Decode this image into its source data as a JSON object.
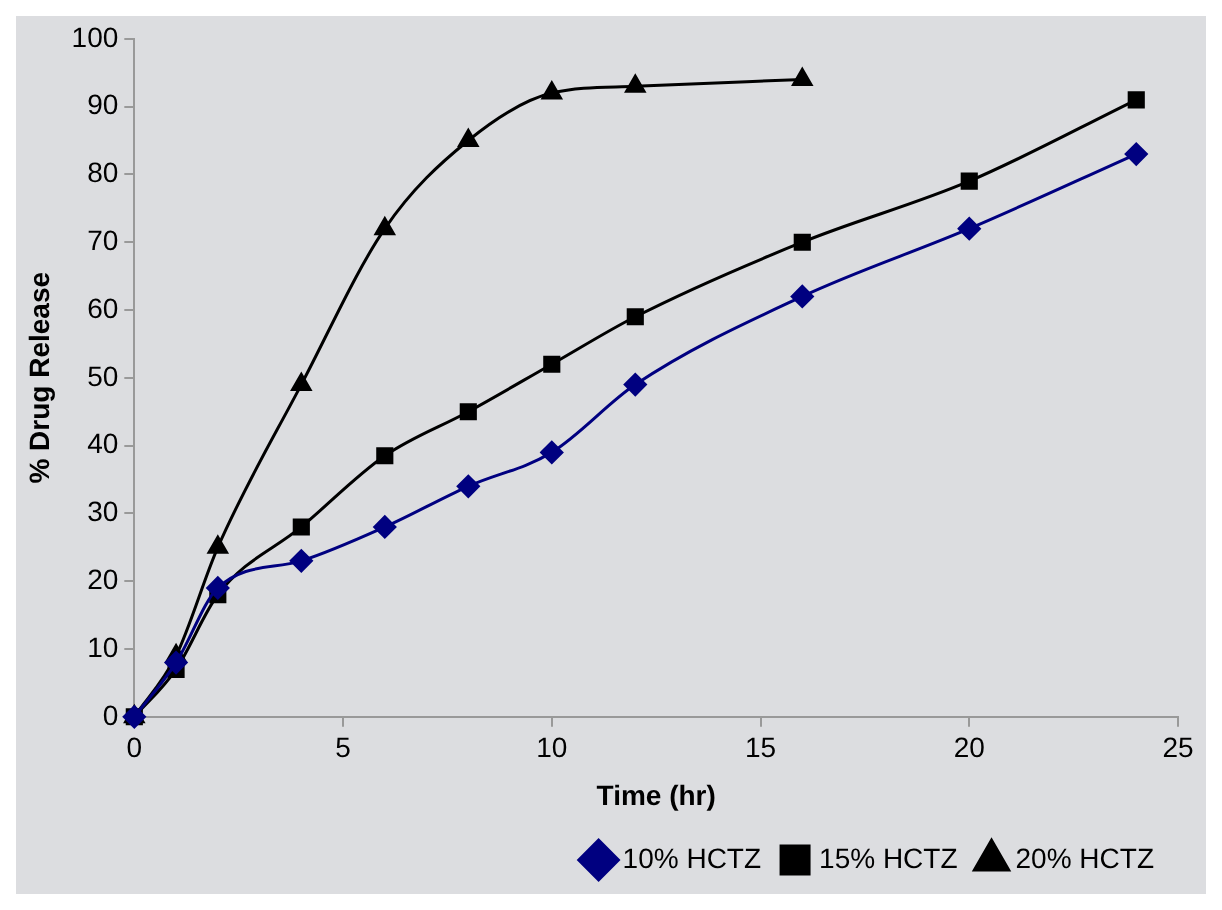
{
  "chart_data": {
    "type": "line",
    "xlabel": "Time (hr)",
    "ylabel": "% Drug Release",
    "xlim": [
      0,
      25
    ],
    "xticks": [
      0,
      5,
      10,
      15,
      20,
      25
    ],
    "ylim": [
      0,
      100
    ],
    "yticks": [
      0,
      10,
      20,
      30,
      40,
      50,
      60,
      70,
      80,
      90,
      100
    ],
    "grid": false,
    "legend": "bottom",
    "series": [
      {
        "name": "10% HCTZ",
        "color": "#000080",
        "marker": "diamond",
        "x": [
          0,
          1,
          2,
          4,
          6,
          8,
          10,
          12,
          16,
          20,
          24
        ],
        "values": [
          0,
          8,
          19,
          23,
          28,
          34,
          39,
          49,
          62,
          72,
          83
        ]
      },
      {
        "name": "15% HCTZ",
        "color": "#000000",
        "marker": "square",
        "x": [
          0,
          1,
          2,
          4,
          6,
          8,
          10,
          12,
          16,
          20,
          24
        ],
        "values": [
          0,
          7,
          18,
          28,
          38.5,
          45,
          52,
          59,
          70,
          79,
          91
        ]
      },
      {
        "name": "20% HCTZ",
        "color": "#000000",
        "marker": "triangle",
        "x": [
          0,
          1,
          2,
          4,
          6,
          8,
          10,
          12,
          16
        ],
        "values": [
          0,
          9,
          25,
          49,
          72,
          85,
          92,
          93,
          94
        ]
      }
    ]
  }
}
